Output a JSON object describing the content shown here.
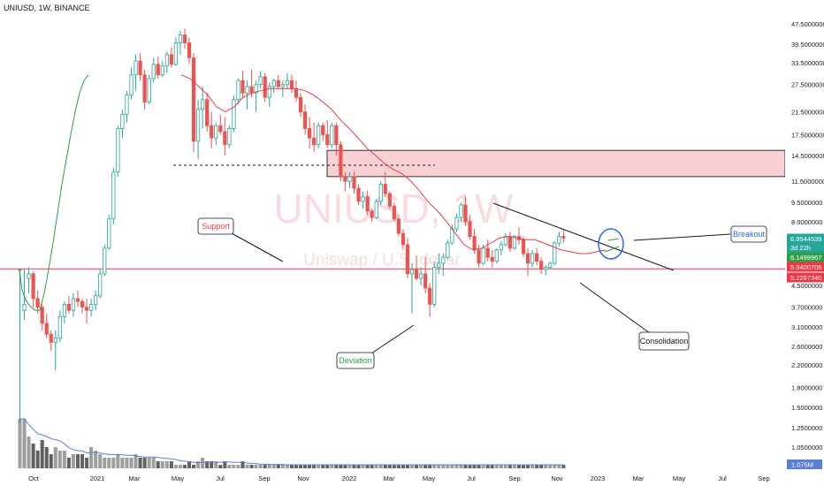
{
  "header": {
    "title": "UNIUSD, 1W, BINANCE"
  },
  "watermark": {
    "main": "UNIUSD, 1W",
    "sub": "Uniswap / U.S. dollar"
  },
  "colors": {
    "up": "#26a69a",
    "up_fill": "#26a69a",
    "down": "#ef5350",
    "ema": "#f23645",
    "sma": "#2e9e44",
    "resistance_fill": "#f9d0d3",
    "resistance_edge": "#000000",
    "deviation_fill": "#a5d6a7",
    "support_line": "#f23645",
    "volume_up": "#9e9e9e",
    "volume_down": "#616161",
    "volume_ma": "#5b7fd6",
    "circle": "#2962ff"
  },
  "chart_data": {
    "type": "candlestick",
    "scale": "log",
    "y_axis_ticks": [
      "47.5000000",
      "39.5000000",
      "33.5000000",
      "27.5000000",
      "21.5000000",
      "17.5000000",
      "14.5000000",
      "11.5000000",
      "9.5000000",
      "8.0000000",
      "4.5000000",
      "3.7000000",
      "3.1000000",
      "2.6000000",
      "2.2000000",
      "1.8000000",
      "1.5000000",
      "1.2500000",
      "1.0500000"
    ],
    "x_axis_ticks": [
      "Oct",
      "2021",
      "Mar",
      "May",
      "Jul",
      "Sep",
      "Nov",
      "2022",
      "Mar",
      "May",
      "Jul",
      "Sep",
      "Nov",
      "2023",
      "Mar",
      "May",
      "Jul",
      "Sep"
    ],
    "price_labels": [
      {
        "text": "6.9544539",
        "kind": "up"
      },
      {
        "text": "3d 22h",
        "kind": "up-sub"
      },
      {
        "text": "6.1499967",
        "kind": "green"
      },
      {
        "text": "5.9400706",
        "kind": "red"
      },
      {
        "text": "5.2267340",
        "kind": "red"
      }
    ],
    "volume_label": "1.075M",
    "annotations": [
      {
        "text": "Support"
      },
      {
        "text": "Deviation"
      },
      {
        "text": "Breakout"
      },
      {
        "text": "Consolidation"
      }
    ],
    "support_level": 5.23,
    "resistance_zone": [
      12.0,
      15.2
    ],
    "deviation_zone": [
      3.25,
      5.23
    ],
    "dashed_level": 13.3,
    "candles": [
      [
        5.2,
        5.2,
        1.3,
        5.2
      ],
      [
        3.6,
        5.2,
        3.3,
        3.8
      ],
      [
        4.8,
        5.3,
        4.2,
        5.0
      ],
      [
        5.0,
        5.1,
        3.7,
        4.0
      ],
      [
        4.0,
        4.3,
        3.5,
        3.7
      ],
      [
        3.7,
        3.8,
        3.0,
        3.2
      ],
      [
        3.2,
        3.5,
        2.8,
        2.9
      ],
      [
        2.9,
        3.0,
        2.5,
        2.7
      ],
      [
        2.7,
        3.0,
        2.1,
        2.8
      ],
      [
        2.8,
        3.6,
        2.7,
        3.4
      ],
      [
        3.4,
        3.9,
        3.2,
        3.8
      ],
      [
        3.8,
        4.1,
        3.5,
        3.6
      ],
      [
        3.6,
        4.2,
        3.4,
        4.0
      ],
      [
        4.0,
        4.3,
        3.7,
        3.9
      ],
      [
        3.9,
        4.0,
        3.5,
        3.7
      ],
      [
        3.7,
        4.0,
        3.2,
        3.6
      ],
      [
        3.6,
        4.0,
        3.4,
        3.8
      ],
      [
        3.8,
        4.3,
        3.6,
        4.1
      ],
      [
        4.1,
        5.2,
        4.0,
        5.0
      ],
      [
        5.0,
        6.5,
        4.9,
        6.3
      ],
      [
        6.3,
        8.5,
        6.2,
        8.2
      ],
      [
        8.2,
        13.0,
        7.8,
        12.5
      ],
      [
        12.5,
        19.0,
        12.0,
        18.5
      ],
      [
        18.5,
        22.0,
        17.0,
        21.0
      ],
      [
        21.0,
        26.0,
        19.5,
        25.0
      ],
      [
        25.0,
        32.0,
        24.0,
        30.0
      ],
      [
        30.0,
        36.0,
        26.0,
        34.0
      ],
      [
        34.0,
        36.5,
        28.5,
        30.0
      ],
      [
        30.0,
        31.5,
        22.0,
        23.5
      ],
      [
        23.5,
        30.0,
        23.0,
        29.0
      ],
      [
        29.0,
        35.0,
        28.0,
        33.0
      ],
      [
        33.0,
        35.5,
        29.0,
        30.0
      ],
      [
        30.0,
        34.0,
        29.5,
        32.5
      ],
      [
        32.5,
        37.0,
        30.5,
        36.0
      ],
      [
        36.0,
        38.5,
        32.0,
        33.0
      ],
      [
        33.0,
        42.0,
        32.5,
        40.0
      ],
      [
        40.0,
        44.5,
        36.0,
        43.0
      ],
      [
        43.0,
        45.5,
        38.0,
        40.0
      ],
      [
        40.0,
        42.0,
        33.0,
        35.0
      ],
      [
        35.0,
        36.5,
        15.0,
        16.5
      ],
      [
        16.5,
        24.0,
        14.0,
        22.0
      ],
      [
        22.0,
        27.0,
        18.5,
        24.0
      ],
      [
        24.0,
        25.5,
        18.0,
        19.0
      ],
      [
        19.0,
        21.5,
        15.5,
        17.0
      ],
      [
        17.0,
        19.5,
        16.0,
        19.0
      ],
      [
        19.0,
        21.0,
        17.5,
        18.0
      ],
      [
        18.0,
        20.5,
        14.5,
        16.0
      ],
      [
        16.0,
        19.0,
        15.5,
        18.5
      ],
      [
        18.5,
        25.0,
        18.0,
        24.0
      ],
      [
        24.0,
        29.0,
        23.0,
        28.5
      ],
      [
        28.5,
        31.0,
        24.5,
        25.5
      ],
      [
        25.5,
        28.5,
        22.0,
        27.0
      ],
      [
        27.0,
        31.5,
        24.5,
        25.5
      ],
      [
        25.5,
        28.5,
        21.5,
        27.5
      ],
      [
        27.5,
        31.0,
        26.5,
        29.5
      ],
      [
        29.5,
        30.5,
        23.5,
        24.5
      ],
      [
        24.5,
        28.0,
        22.5,
        27.0
      ],
      [
        27.0,
        29.0,
        25.5,
        28.5
      ],
      [
        28.5,
        30.0,
        26.5,
        27.0
      ],
      [
        27.0,
        28.5,
        24.5,
        27.5
      ],
      [
        27.5,
        30.5,
        26.5,
        28.5
      ],
      [
        28.5,
        30.0,
        25.5,
        26.5
      ],
      [
        26.5,
        28.5,
        23.5,
        24.5
      ],
      [
        24.5,
        25.5,
        20.5,
        21.5
      ],
      [
        21.5,
        23.0,
        17.5,
        18.5
      ],
      [
        18.5,
        20.5,
        15.5,
        17.0
      ],
      [
        17.0,
        19.5,
        15.0,
        16.0
      ],
      [
        16.0,
        19.5,
        15.5,
        19.0
      ],
      [
        19.0,
        19.5,
        16.5,
        17.5
      ],
      [
        17.5,
        20.0,
        15.5,
        16.0
      ],
      [
        16.0,
        19.5,
        15.5,
        19.0
      ],
      [
        19.0,
        19.5,
        14.5,
        16.0
      ],
      [
        16.0,
        16.5,
        11.5,
        12.0
      ],
      [
        12.0,
        12.5,
        10.5,
        11.5
      ],
      [
        11.5,
        12.5,
        10.8,
        12.0
      ],
      [
        12.0,
        12.5,
        10.3,
        10.8
      ],
      [
        10.8,
        11.2,
        9.3,
        9.6
      ],
      [
        9.6,
        10.5,
        9.0,
        10.0
      ],
      [
        10.0,
        10.6,
        8.5,
        8.8
      ],
      [
        8.8,
        9.0,
        8.0,
        8.3
      ],
      [
        8.3,
        9.8,
        8.2,
        9.6
      ],
      [
        9.6,
        11.5,
        9.3,
        11.2
      ],
      [
        11.2,
        12.5,
        10.0,
        10.3
      ],
      [
        10.3,
        10.5,
        9.0,
        9.2
      ],
      [
        9.2,
        9.5,
        8.0,
        8.2
      ],
      [
        8.2,
        8.5,
        7.0,
        7.2
      ],
      [
        7.2,
        7.5,
        6.2,
        6.5
      ],
      [
        6.5,
        6.9,
        4.8,
        5.0
      ],
      [
        5.0,
        5.5,
        3.5,
        5.2
      ],
      [
        5.2,
        5.9,
        4.7,
        4.8
      ],
      [
        4.8,
        5.3,
        4.5,
        5.0
      ],
      [
        5.0,
        5.8,
        4.2,
        4.4
      ],
      [
        4.4,
        4.6,
        3.4,
        3.8
      ],
      [
        3.8,
        5.6,
        3.7,
        5.3
      ],
      [
        5.3,
        6.0,
        5.0,
        5.5
      ],
      [
        5.5,
        6.0,
        4.9,
        5.8
      ],
      [
        5.8,
        6.8,
        5.7,
        6.6
      ],
      [
        6.6,
        7.8,
        6.5,
        7.5
      ],
      [
        7.5,
        8.6,
        7.3,
        8.3
      ],
      [
        8.3,
        9.5,
        8.0,
        9.3
      ],
      [
        9.3,
        10.0,
        7.7,
        8.0
      ],
      [
        8.0,
        8.5,
        6.8,
        7.0
      ],
      [
        7.0,
        7.5,
        6.0,
        6.2
      ],
      [
        6.2,
        6.5,
        5.3,
        5.5
      ],
      [
        5.5,
        6.5,
        5.4,
        6.3
      ],
      [
        6.3,
        6.8,
        5.6,
        5.8
      ],
      [
        5.8,
        6.2,
        5.3,
        5.6
      ],
      [
        5.6,
        6.3,
        5.5,
        6.2
      ],
      [
        6.2,
        6.7,
        5.9,
        6.5
      ],
      [
        6.5,
        7.2,
        6.4,
        7.0
      ],
      [
        7.0,
        7.3,
        6.1,
        6.3
      ],
      [
        6.3,
        7.1,
        6.2,
        7.0
      ],
      [
        7.0,
        7.6,
        6.5,
        6.8
      ],
      [
        6.8,
        7.0,
        5.8,
        6.0
      ],
      [
        6.0,
        6.3,
        4.9,
        5.5
      ],
      [
        5.5,
        6.2,
        5.3,
        6.0
      ],
      [
        6.0,
        6.3,
        5.4,
        5.6
      ],
      [
        5.6,
        5.8,
        5.0,
        5.2
      ],
      [
        5.2,
        5.4,
        4.95,
        5.3
      ],
      [
        5.3,
        5.6,
        5.2,
        5.5
      ],
      [
        5.5,
        6.7,
        5.4,
        6.6
      ],
      [
        6.6,
        7.3,
        6.4,
        7.0
      ],
      [
        7.0,
        7.4,
        6.6,
        6.9
      ]
    ],
    "sma_points": [
      [
        22,
        5.2
      ],
      [
        25,
        4.3
      ],
      [
        30,
        3.9
      ],
      [
        35,
        3.7
      ],
      [
        40,
        3.6
      ],
      [
        45,
        3.6
      ],
      [
        50,
        4.2
      ],
      [
        55,
        5.2
      ],
      [
        60,
        6.6
      ],
      [
        65,
        8.6
      ],
      [
        70,
        11.2
      ],
      [
        75,
        14.0
      ],
      [
        80,
        17.5
      ],
      [
        85,
        21.5
      ],
      [
        90,
        25.5
      ],
      [
        95,
        28.5
      ],
      [
        100,
        30.0
      ]
    ],
    "ema_points": [
      [
        205,
        30.0
      ],
      [
        215,
        29.0
      ],
      [
        225,
        27.0
      ],
      [
        235,
        25.0
      ],
      [
        245,
        22.5
      ],
      [
        255,
        21.5
      ],
      [
        265,
        22.5
      ],
      [
        275,
        24.5
      ],
      [
        285,
        25.5
      ],
      [
        295,
        26.0
      ],
      [
        305,
        26.5
      ],
      [
        315,
        26.5
      ],
      [
        325,
        26.5
      ],
      [
        335,
        26.5
      ],
      [
        345,
        26.0
      ],
      [
        355,
        25.0
      ],
      [
        365,
        23.5
      ],
      [
        375,
        22.0
      ],
      [
        385,
        20.0
      ],
      [
        395,
        18.5
      ],
      [
        405,
        17.0
      ],
      [
        415,
        15.5
      ],
      [
        425,
        14.5
      ],
      [
        435,
        13.5
      ],
      [
        445,
        12.8
      ],
      [
        455,
        12.3
      ],
      [
        465,
        11.5
      ],
      [
        475,
        10.5
      ],
      [
        485,
        9.5
      ],
      [
        495,
        8.8
      ],
      [
        505,
        8.0
      ],
      [
        515,
        7.2
      ],
      [
        525,
        6.5
      ],
      [
        535,
        6.2
      ],
      [
        545,
        6.3
      ],
      [
        555,
        6.6
      ],
      [
        565,
        6.9
      ],
      [
        575,
        7.0
      ],
      [
        585,
        6.9
      ],
      [
        595,
        6.8
      ],
      [
        605,
        6.8
      ],
      [
        615,
        6.6
      ],
      [
        625,
        6.4
      ],
      [
        635,
        6.2
      ],
      [
        645,
        6.1
      ],
      [
        655,
        6.0
      ],
      [
        665,
        6.0
      ],
      [
        675,
        6.1
      ],
      [
        685,
        6.2
      ]
    ],
    "volumes": [
      0.14,
      0.14,
      0.09,
      0.07,
      0.05,
      0.08,
      0.06,
      0.04,
      0.06,
      0.05,
      0.05,
      0.03,
      0.04,
      0.04,
      0.04,
      0.03,
      0.06,
      0.05,
      0.04,
      0.03,
      0.03,
      0.03,
      0.04,
      0.03,
      0.03,
      0.03,
      0.04,
      0.03,
      0.03,
      0.03,
      0.03,
      0.02,
      0.02,
      0.02,
      0.02,
      0.01,
      0.01,
      0.01,
      0.02,
      0.01,
      0.02,
      0.03,
      0.02,
      0.02,
      0.02,
      0.01,
      0.02,
      0.01,
      0.01,
      0.01,
      0.02,
      0.01,
      0.01,
      0.01,
      0.01,
      0.01,
      0.01,
      0.01,
      0.01,
      0.01,
      0.01,
      0.01,
      0.01,
      0.01,
      0.01,
      0.01,
      0.01,
      0.01,
      0.01,
      0.01,
      0.01,
      0.01,
      0.01,
      0.01,
      0.01,
      0.01,
      0.01,
      0.01,
      0.01,
      0.01,
      0.01,
      0.01,
      0.01,
      0.01,
      0.01,
      0.01,
      0.01,
      0.01,
      0.01,
      0.01,
      0.01,
      0.01,
      0.01,
      0.01,
      0.01,
      0.01,
      0.01,
      0.01,
      0.01,
      0.01,
      0.01,
      0.01,
      0.01,
      0.01,
      0.01,
      0.01,
      0.01,
      0.01,
      0.01,
      0.01,
      0.01,
      0.01,
      0.01,
      0.01,
      0.01,
      0.01,
      0.01,
      0.01,
      0.01,
      0.01,
      0.01,
      0.01,
      0.01
    ]
  }
}
